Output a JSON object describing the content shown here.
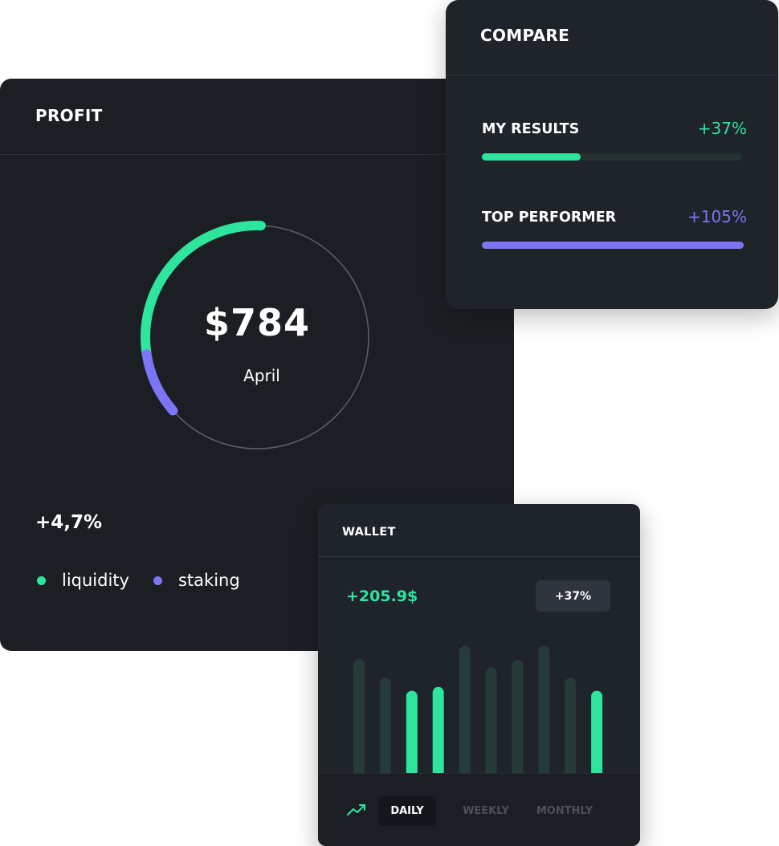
{
  "profit": {
    "title": "PROFIT",
    "amount": "$784",
    "month": "April",
    "change": "+4,7%",
    "legend": [
      {
        "label": "liquidity",
        "color": "#2ee59d"
      },
      {
        "label": "staking",
        "color": "#7c75f5"
      }
    ],
    "ring": {
      "liquidity_fraction": 0.28,
      "staking_fraction": 0.09
    }
  },
  "compare": {
    "title": "COMPARE",
    "rows": [
      {
        "label": "MY RESULTS",
        "value": "+37%",
        "fraction": 0.38,
        "color": "#2ee59d"
      },
      {
        "label": "TOP PERFORMER",
        "value": "+105%",
        "fraction": 1.0,
        "color": "#7c75f5"
      }
    ]
  },
  "wallet": {
    "title": "WALLET",
    "amount": "+205.9$",
    "badge": "+37%",
    "bars": [
      {
        "value": 0.89,
        "active": false
      },
      {
        "value": 0.74,
        "active": false
      },
      {
        "value": 0.64,
        "active": true
      },
      {
        "value": 0.67,
        "active": true
      },
      {
        "value": 0.99,
        "active": false
      },
      {
        "value": 0.82,
        "active": false
      },
      {
        "value": 0.88,
        "active": false
      },
      {
        "value": 0.99,
        "active": false
      },
      {
        "value": 0.74,
        "active": false
      },
      {
        "value": 0.64,
        "active": true
      }
    ],
    "tabs": [
      {
        "label": "DAILY",
        "selected": true
      },
      {
        "label": "WEEKLY",
        "selected": false
      },
      {
        "label": "MONTHLY",
        "selected": false
      }
    ],
    "icon": "trend-up-icon"
  },
  "colors": {
    "accent_green": "#2ee59d",
    "accent_purple": "#7c75f5",
    "card_dark": "#1b1f23",
    "card_mid": "#1f232a"
  }
}
